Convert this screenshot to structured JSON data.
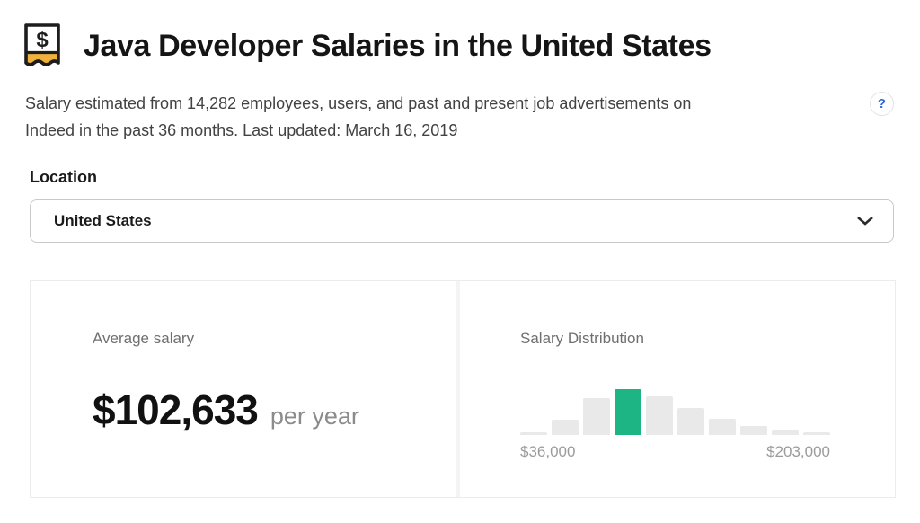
{
  "colors": {
    "accent_green": "#1db584",
    "bar_gray": "#e9e9e9",
    "help_blue": "#3169d5",
    "badge_yellow": "#f0b13c"
  },
  "header": {
    "title": "Java Developer Salaries in the United States",
    "badge_symbol": "$"
  },
  "meta": {
    "description_lines": [
      "Salary estimated from 14,282 employees, users, and past and present job advertisements on",
      "Indeed in the past 36 months. Last updated: March 16, 2019"
    ],
    "help_label": "?"
  },
  "location": {
    "label": "Location",
    "value": "United States"
  },
  "average_salary": {
    "label": "Average salary",
    "amount": "$102,633",
    "period": "per year"
  },
  "chart_data": {
    "type": "bar",
    "title": "Salary Distribution",
    "values_relative": [
      3,
      17,
      41,
      51,
      43,
      30,
      18,
      10,
      5,
      3
    ],
    "max_value": 51,
    "highlight_index": 3,
    "x_axis_min_label": "$36,000",
    "x_axis_max_label": "$203,000",
    "bar_color": "#e9e9e9",
    "highlight_color": "#1db584",
    "ylabel": "",
    "xlabel": "",
    "legend": "none",
    "grid": "off"
  }
}
